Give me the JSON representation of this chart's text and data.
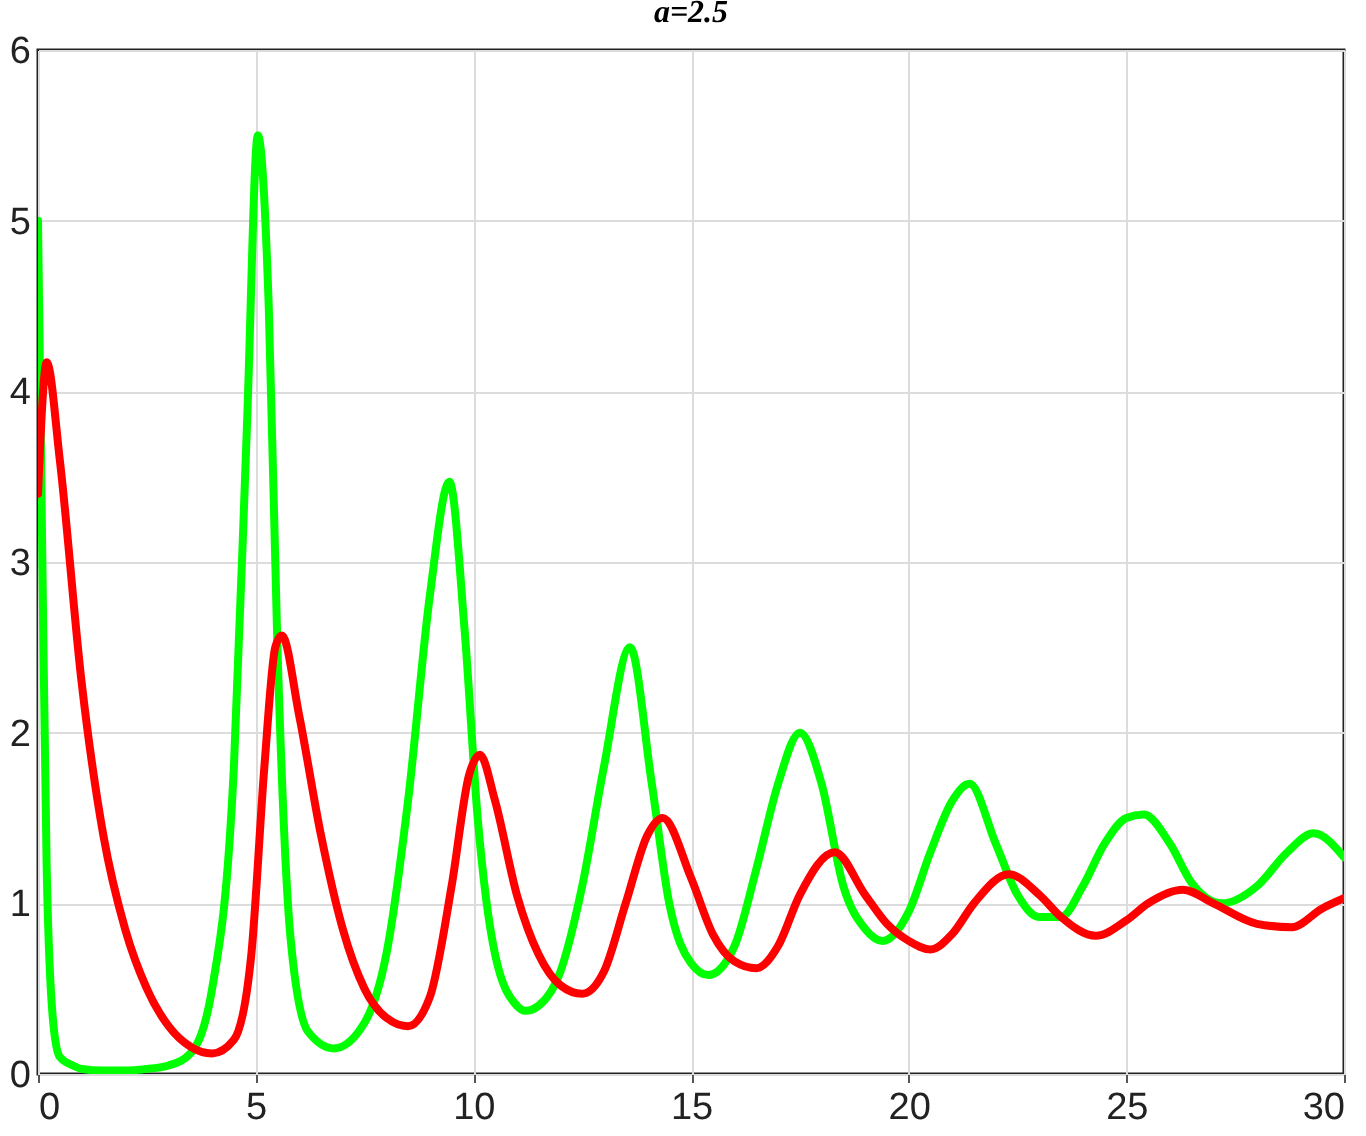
{
  "chart_data": {
    "type": "line",
    "title": "a=2.5",
    "xlim": [
      0,
      30
    ],
    "ylim": [
      0,
      6
    ],
    "xticks": [
      0,
      5,
      10,
      15,
      20,
      25,
      30
    ],
    "yticks": [
      0,
      1,
      2,
      3,
      4,
      5,
      6
    ],
    "grid": true,
    "legend": false,
    "series": [
      {
        "color": "#00ff00",
        "x": [
          0,
          0.1,
          0.2,
          0.35,
          0.5,
          0.8,
          1,
          1.5,
          2,
          2.5,
          3,
          3.5,
          4,
          4.5,
          4.8,
          5.05,
          5.3,
          5.5,
          5.8,
          6.2,
          6.8,
          7.5,
          8,
          8.5,
          9,
          9.45,
          9.8,
          10.1,
          10.5,
          11,
          11.2,
          11.5,
          12,
          12.5,
          13,
          13.6,
          14.1,
          14.5,
          15,
          15.4,
          16,
          16.5,
          17,
          17.5,
          18,
          18.5,
          19,
          19.4,
          20,
          20.5,
          21,
          21.4,
          22,
          22.5,
          23,
          23.5,
          24,
          24.5,
          25,
          25.4,
          26,
          26.5,
          27.2,
          28,
          28.7,
          29.3,
          30
        ],
        "values": [
          5,
          3,
          1.2,
          0.3,
          0.1,
          0.05,
          0.03,
          0.02,
          0.02,
          0.03,
          0.05,
          0.12,
          0.5,
          1.8,
          3.8,
          5.5,
          4.5,
          2.5,
          0.8,
          0.25,
          0.15,
          0.3,
          0.7,
          1.6,
          2.8,
          3.47,
          2.6,
          1.5,
          0.7,
          0.4,
          0.37,
          0.4,
          0.6,
          1.1,
          1.8,
          2.5,
          1.7,
          1.0,
          0.65,
          0.58,
          0.75,
          1.2,
          1.7,
          2.0,
          1.7,
          1.1,
          0.85,
          0.78,
          0.95,
          1.3,
          1.6,
          1.7,
          1.35,
          1.05,
          0.92,
          0.92,
          1.1,
          1.35,
          1.5,
          1.52,
          1.35,
          1.12,
          1.0,
          1.1,
          1.3,
          1.41,
          1.27
        ]
      },
      {
        "color": "#ff0000",
        "x": [
          0,
          0.2,
          0.5,
          1,
          1.5,
          2,
          2.5,
          3,
          3.5,
          4,
          4.5,
          4.9,
          5.2,
          5.45,
          5.6,
          6,
          6.5,
          7,
          7.5,
          8,
          8.5,
          9,
          9.5,
          9.9,
          10.15,
          10.5,
          11,
          11.5,
          12,
          12.5,
          13,
          13.5,
          14,
          14.35,
          15,
          15.5,
          16,
          16.5,
          17,
          17.5,
          18.3,
          19,
          19.5,
          20,
          20.5,
          21,
          21.5,
          22.3,
          23,
          23.5,
          24.3,
          25,
          25.5,
          26.3,
          27,
          28,
          28.8,
          29.5,
          30
        ],
        "values": [
          3.4,
          4.17,
          3.6,
          2.3,
          1.4,
          0.85,
          0.5,
          0.28,
          0.16,
          0.12,
          0.2,
          0.7,
          1.8,
          2.5,
          2.57,
          2.1,
          1.4,
          0.85,
          0.5,
          0.33,
          0.28,
          0.45,
          1.1,
          1.75,
          1.87,
          1.6,
          1.05,
          0.7,
          0.52,
          0.47,
          0.6,
          1.0,
          1.4,
          1.5,
          1.15,
          0.82,
          0.66,
          0.62,
          0.75,
          1.05,
          1.3,
          1.05,
          0.88,
          0.78,
          0.73,
          0.82,
          1.0,
          1.17,
          1.05,
          0.92,
          0.81,
          0.9,
          1.0,
          1.08,
          1.0,
          0.88,
          0.86,
          0.97,
          1.03
        ]
      }
    ]
  }
}
